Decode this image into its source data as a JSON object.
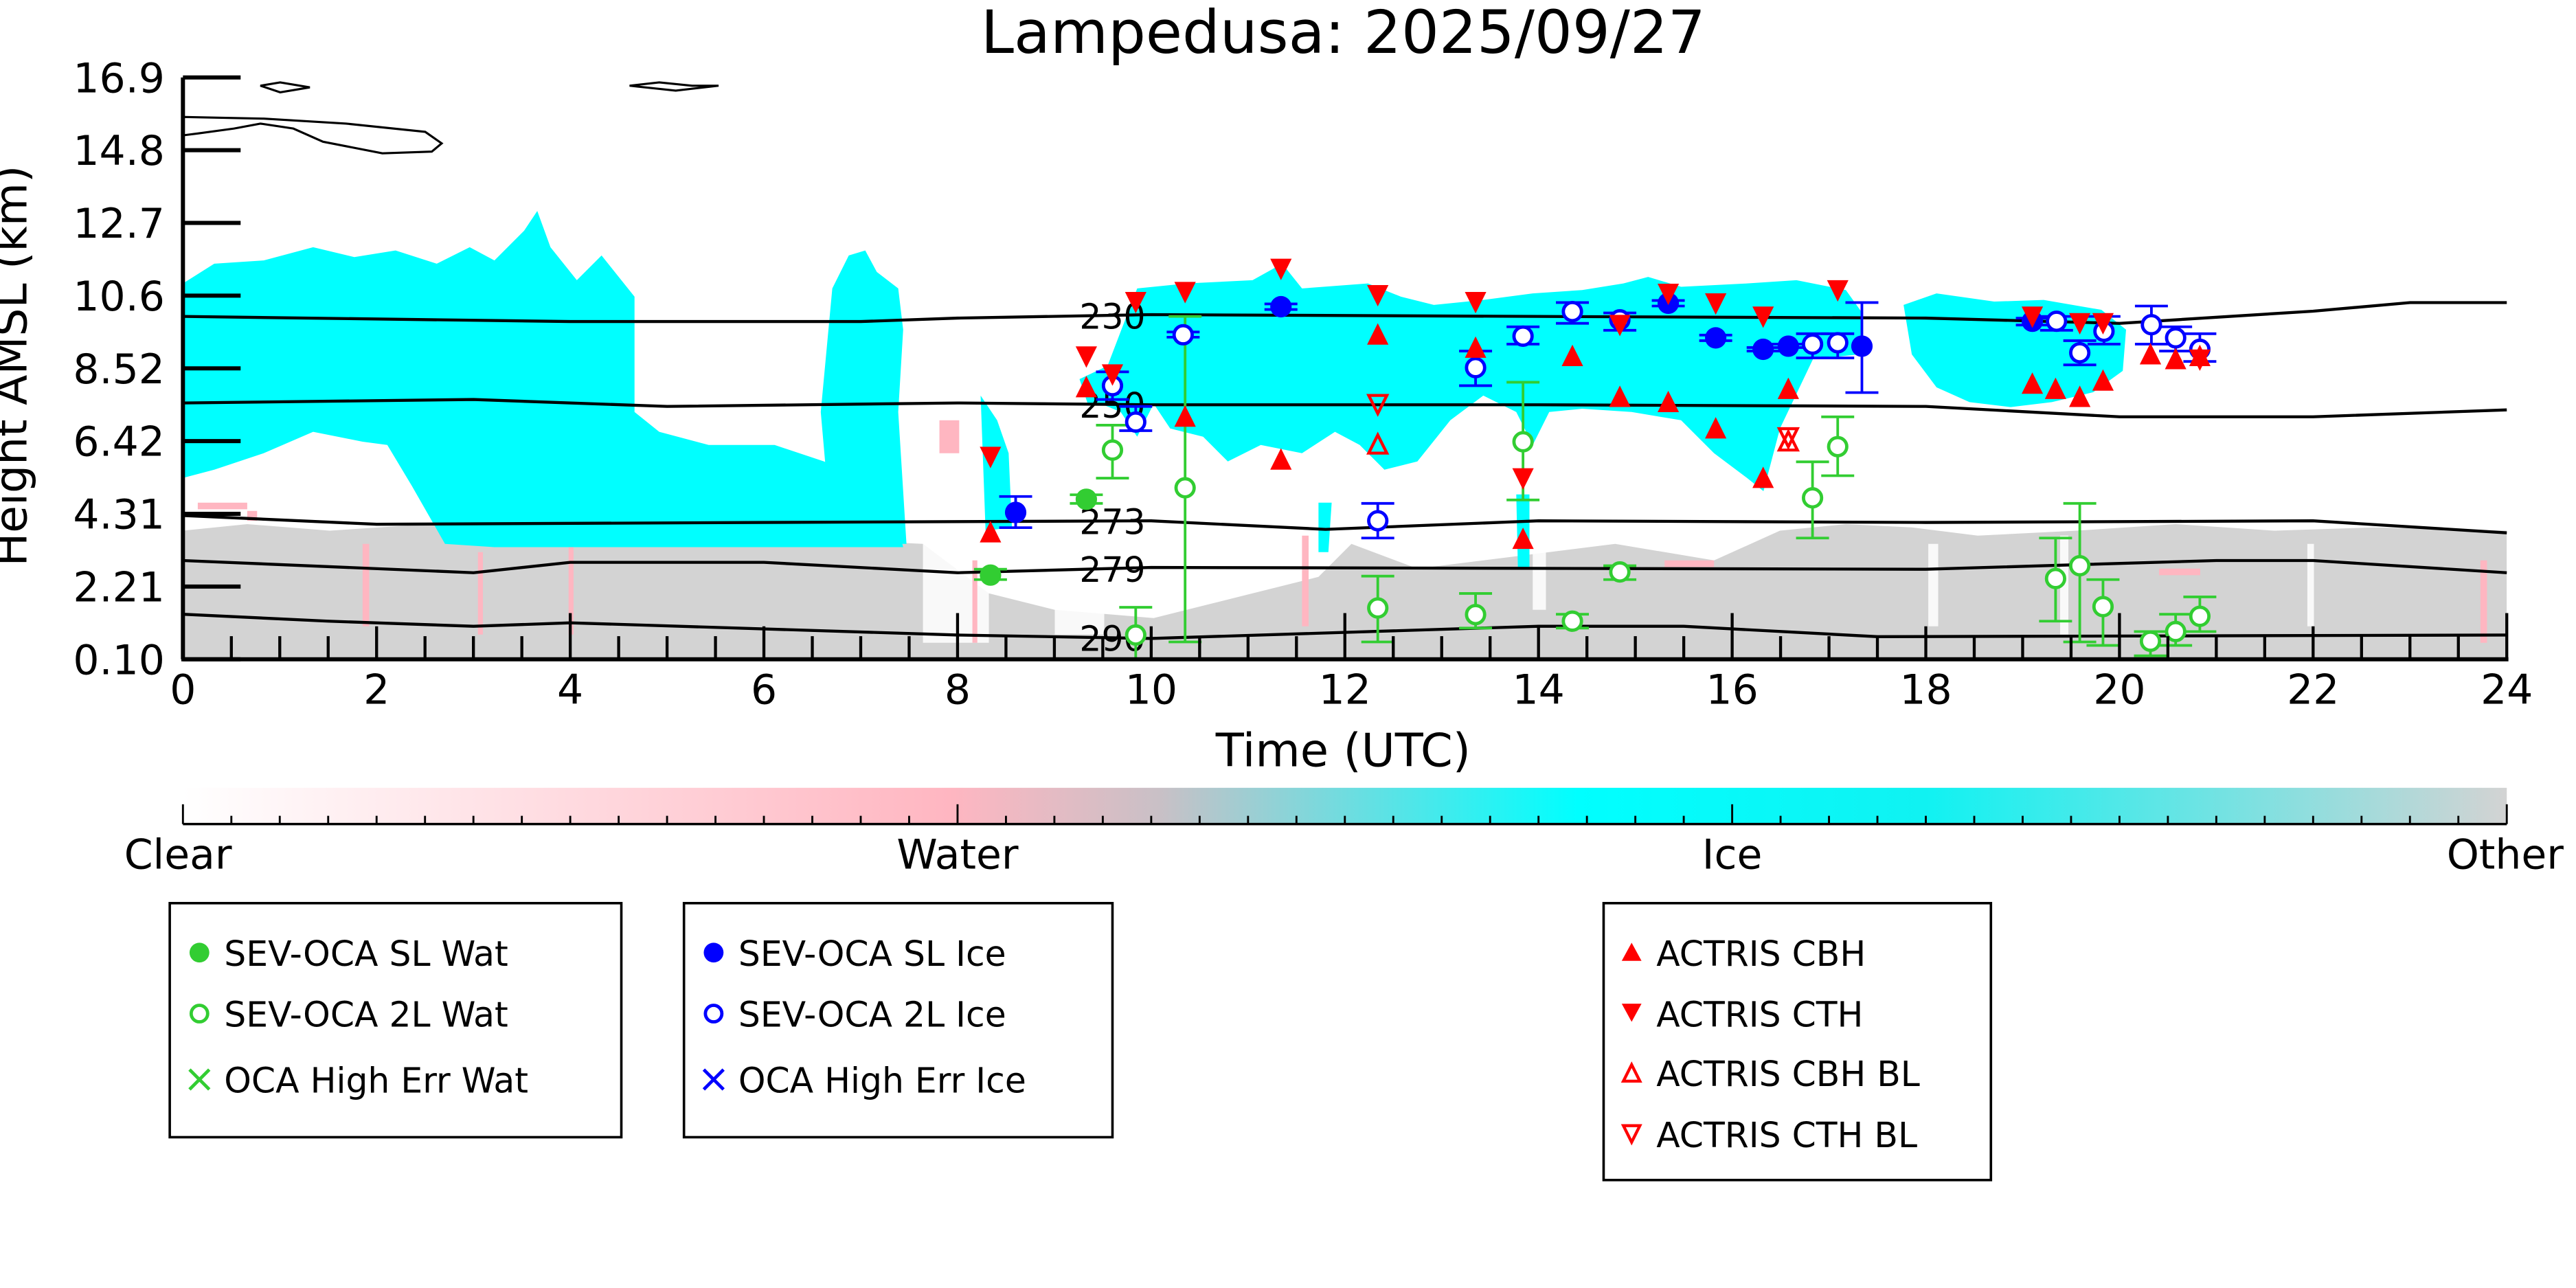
{
  "chart_data": {
    "type": "scatter",
    "title": "Lampedusa: 2025/09/27",
    "xlabel": "Time (UTC)",
    "ylabel": "Height AMSL (km)",
    "xlim": [
      0,
      24
    ],
    "ylim": [
      0.1,
      16.9
    ],
    "xticks": [
      "0",
      "2",
      "4",
      "6",
      "8",
      "10",
      "12",
      "14",
      "16",
      "18",
      "20",
      "22",
      "24"
    ],
    "yticks": [
      "0.10",
      "2.21",
      "4.31",
      "6.42",
      "8.52",
      "10.6",
      "12.7",
      "14.8",
      "16.9"
    ],
    "colorbar": {
      "labels": [
        "Clear",
        "Water",
        "Ice",
        "Other"
      ],
      "colors": {
        "clear": "#ffffff",
        "water": "#ffb6c1",
        "ice": "#00ffff",
        "other": "#d3d3d3"
      }
    },
    "isotherms": [
      {
        "label": "230",
        "points": [
          [
            0,
            10.0
          ],
          [
            4,
            9.85
          ],
          [
            7,
            9.85
          ],
          [
            8,
            9.95
          ],
          [
            10,
            10.05
          ],
          [
            14,
            10.0
          ],
          [
            18,
            9.95
          ],
          [
            20,
            9.8
          ],
          [
            22,
            10.15
          ],
          [
            23,
            10.4
          ],
          [
            24,
            10.4
          ]
        ]
      },
      {
        "label": "250",
        "points": [
          [
            0,
            7.5
          ],
          [
            3,
            7.6
          ],
          [
            5,
            7.4
          ],
          [
            8,
            7.5
          ],
          [
            10,
            7.45
          ],
          [
            14,
            7.45
          ],
          [
            18,
            7.4
          ],
          [
            20,
            7.1
          ],
          [
            22,
            7.1
          ],
          [
            24,
            7.3
          ]
        ]
      },
      {
        "label": "273",
        "points": [
          [
            0,
            4.25
          ],
          [
            2,
            4.0
          ],
          [
            6,
            4.05
          ],
          [
            10,
            4.1
          ],
          [
            11.8,
            3.85
          ],
          [
            14,
            4.1
          ],
          [
            18,
            4.05
          ],
          [
            22,
            4.1
          ],
          [
            24,
            3.75
          ]
        ]
      },
      {
        "label": "279",
        "points": [
          [
            0,
            2.95
          ],
          [
            3,
            2.6
          ],
          [
            4,
            2.9
          ],
          [
            6,
            2.9
          ],
          [
            8,
            2.6
          ],
          [
            10,
            2.75
          ],
          [
            18,
            2.7
          ],
          [
            21,
            2.95
          ],
          [
            22,
            2.95
          ],
          [
            24,
            2.6
          ]
        ]
      },
      {
        "label": "290",
        "points": [
          [
            0,
            1.4
          ],
          [
            1.5,
            1.2
          ],
          [
            3,
            1.05
          ],
          [
            4,
            1.15
          ],
          [
            8,
            0.8
          ],
          [
            10,
            0.7
          ],
          [
            14,
            1.05
          ],
          [
            15.5,
            1.05
          ],
          [
            17.5,
            0.75
          ],
          [
            24,
            0.8
          ]
        ]
      }
    ],
    "series": [
      {
        "name": "SEV-OCA SL Wat",
        "color": "#32cd32",
        "marker": "filled-circle",
        "points": [
          {
            "t": 8.34,
            "h": 2.53,
            "err": [
              2.4,
              2.7
            ]
          },
          {
            "t": 9.33,
            "h": 4.72,
            "err": [
              4.6,
              4.85
            ]
          }
        ]
      },
      {
        "name": "SEV-OCA 2L Wat",
        "color": "#32cd32",
        "marker": "open-circle",
        "points": [
          {
            "t": 9.6,
            "h": 6.14,
            "err": [
              5.33,
              6.86
            ]
          },
          {
            "t": 10.35,
            "h": 5.05,
            "err": [
              0.6,
              10.0
            ]
          },
          {
            "t": 9.84,
            "h": 0.8,
            "err": [
              0.1,
              1.6
            ]
          },
          {
            "t": 12.34,
            "h": 1.58,
            "err": [
              0.6,
              2.5
            ]
          },
          {
            "t": 13.35,
            "h": 1.39,
            "err": [
              1.0,
              2.0
            ]
          },
          {
            "t": 13.84,
            "h": 6.38,
            "err": [
              4.7,
              8.1
            ]
          },
          {
            "t": 14.35,
            "h": 1.2,
            "err": [
              1.0,
              1.4
            ]
          },
          {
            "t": 14.84,
            "h": 2.62,
            "err": [
              2.4,
              2.8
            ]
          },
          {
            "t": 16.83,
            "h": 4.76,
            "err": [
              3.6,
              5.8
            ]
          },
          {
            "t": 17.09,
            "h": 6.24,
            "err": [
              5.4,
              7.1
            ]
          },
          {
            "t": 19.34,
            "h": 2.43,
            "err": [
              1.2,
              3.6
            ]
          },
          {
            "t": 19.59,
            "h": 2.8,
            "err": [
              0.6,
              4.6
            ]
          },
          {
            "t": 19.83,
            "h": 1.62,
            "err": [
              0.5,
              2.4
            ]
          },
          {
            "t": 20.32,
            "h": 0.62,
            "err": [
              0.2,
              0.9
            ]
          },
          {
            "t": 20.58,
            "h": 0.9,
            "err": [
              0.5,
              1.4
            ]
          },
          {
            "t": 20.83,
            "h": 1.34,
            "err": [
              0.9,
              1.9
            ]
          }
        ]
      },
      {
        "name": "OCA High Err Wat",
        "color": "#32cd32",
        "marker": "x",
        "points": []
      },
      {
        "name": "SEV-OCA SL Ice",
        "color": "#0000ff",
        "marker": "filled-circle",
        "points": [
          {
            "t": 8.6,
            "h": 4.34,
            "err": [
              3.9,
              4.8
            ]
          },
          {
            "t": 11.34,
            "h": 10.28,
            "err": [
              10.2,
              10.36
            ]
          },
          {
            "t": 15.34,
            "h": 10.38,
            "err": [
              10.3,
              10.46
            ]
          },
          {
            "t": 15.83,
            "h": 9.38,
            "err": [
              9.3,
              9.46
            ]
          },
          {
            "t": 16.32,
            "h": 9.05,
            "err": [
              9.0,
              9.1
            ]
          },
          {
            "t": 16.58,
            "h": 9.14,
            "err": [
              9.1,
              9.2
            ]
          },
          {
            "t": 17.34,
            "h": 9.14,
            "err": [
              7.8,
              10.4
            ]
          },
          {
            "t": 19.1,
            "h": 9.86,
            "err": [
              9.75,
              9.95
            ]
          }
        ]
      },
      {
        "name": "SEV-OCA 2L Ice",
        "color": "#0000ff",
        "marker": "open-circle",
        "points": [
          {
            "t": 9.6,
            "h": 8.0,
            "err": [
              7.6,
              8.4
            ]
          },
          {
            "t": 9.84,
            "h": 6.95,
            "err": [
              6.7,
              7.4
            ]
          },
          {
            "t": 10.33,
            "h": 9.47,
            "err": [
              9.4,
              9.55
            ]
          },
          {
            "t": 12.34,
            "h": 4.1,
            "err": [
              3.6,
              4.6
            ]
          },
          {
            "t": 13.35,
            "h": 8.52,
            "err": [
              8.0,
              9.0
            ]
          },
          {
            "t": 13.84,
            "h": 9.43,
            "err": [
              9.2,
              9.7
            ]
          },
          {
            "t": 14.35,
            "h": 10.14,
            "err": [
              9.8,
              10.4
            ]
          },
          {
            "t": 14.84,
            "h": 9.9,
            "err": [
              9.6,
              10.1
            ]
          },
          {
            "t": 16.83,
            "h": 9.2,
            "err": [
              8.8,
              9.5
            ]
          },
          {
            "t": 17.09,
            "h": 9.24,
            "err": [
              8.8,
              9.5
            ]
          },
          {
            "t": 19.35,
            "h": 9.86,
            "err": [
              9.6,
              10.0
            ]
          },
          {
            "t": 19.59,
            "h": 8.95,
            "err": [
              8.6,
              9.3
            ]
          },
          {
            "t": 19.84,
            "h": 9.57,
            "err": [
              9.2,
              10.0
            ]
          },
          {
            "t": 20.33,
            "h": 9.76,
            "err": [
              9.2,
              10.3
            ]
          },
          {
            "t": 20.58,
            "h": 9.38,
            "err": [
              9.0,
              9.7
            ]
          },
          {
            "t": 20.83,
            "h": 9.05,
            "err": [
              8.7,
              9.5
            ]
          }
        ]
      },
      {
        "name": "OCA High Err Ice",
        "color": "#0000ff",
        "marker": "x",
        "points": []
      },
      {
        "name": "ACTRIS CBH",
        "color": "#ff0000",
        "marker": "filled-up-triangle",
        "points": [
          {
            "t": 8.34,
            "h": 3.76
          },
          {
            "t": 9.33,
            "h": 7.95
          },
          {
            "t": 10.35,
            "h": 7.1
          },
          {
            "t": 11.34,
            "h": 5.86
          },
          {
            "t": 12.34,
            "h": 9.47
          },
          {
            "t": 13.35,
            "h": 9.09
          },
          {
            "t": 13.84,
            "h": 3.57
          },
          {
            "t": 14.35,
            "h": 8.85
          },
          {
            "t": 14.84,
            "h": 7.67
          },
          {
            "t": 15.34,
            "h": 7.52
          },
          {
            "t": 15.83,
            "h": 6.76
          },
          {
            "t": 16.32,
            "h": 5.33
          },
          {
            "t": 16.58,
            "h": 7.9
          },
          {
            "t": 19.1,
            "h": 8.05
          },
          {
            "t": 19.34,
            "h": 7.9
          },
          {
            "t": 19.59,
            "h": 7.67
          },
          {
            "t": 19.83,
            "h": 8.14
          },
          {
            "t": 20.32,
            "h": 8.9
          },
          {
            "t": 20.58,
            "h": 8.76
          },
          {
            "t": 20.83,
            "h": 8.85
          }
        ]
      },
      {
        "name": "ACTRIS CTH",
        "color": "#ff0000",
        "marker": "filled-down-triangle",
        "points": [
          {
            "t": 8.34,
            "h": 5.95
          },
          {
            "t": 9.33,
            "h": 8.85
          },
          {
            "t": 9.6,
            "h": 8.33
          },
          {
            "t": 9.84,
            "h": 10.42
          },
          {
            "t": 10.35,
            "h": 10.71
          },
          {
            "t": 11.34,
            "h": 11.38
          },
          {
            "t": 12.34,
            "h": 10.62
          },
          {
            "t": 13.35,
            "h": 10.42
          },
          {
            "t": 13.84,
            "h": 5.33
          },
          {
            "t": 14.84,
            "h": 9.76
          },
          {
            "t": 15.34,
            "h": 10.66
          },
          {
            "t": 15.83,
            "h": 10.38
          },
          {
            "t": 16.32,
            "h": 10.0
          },
          {
            "t": 17.09,
            "h": 10.76
          },
          {
            "t": 19.1,
            "h": 10.0
          },
          {
            "t": 19.59,
            "h": 9.81
          },
          {
            "t": 19.83,
            "h": 9.81
          },
          {
            "t": 20.83,
            "h": 8.76
          }
        ]
      },
      {
        "name": "ACTRIS CBH BL",
        "color": "#ff0000",
        "marker": "open-up-triangle",
        "points": [
          {
            "t": 12.34,
            "h": 6.29
          },
          {
            "t": 16.58,
            "h": 6.38
          }
        ]
      },
      {
        "name": "ACTRIS CTH BL",
        "color": "#ff0000",
        "marker": "open-down-triangle",
        "points": [
          {
            "t": 12.34,
            "h": 7.48
          },
          {
            "t": 16.58,
            "h": 6.52
          }
        ]
      }
    ]
  }
}
